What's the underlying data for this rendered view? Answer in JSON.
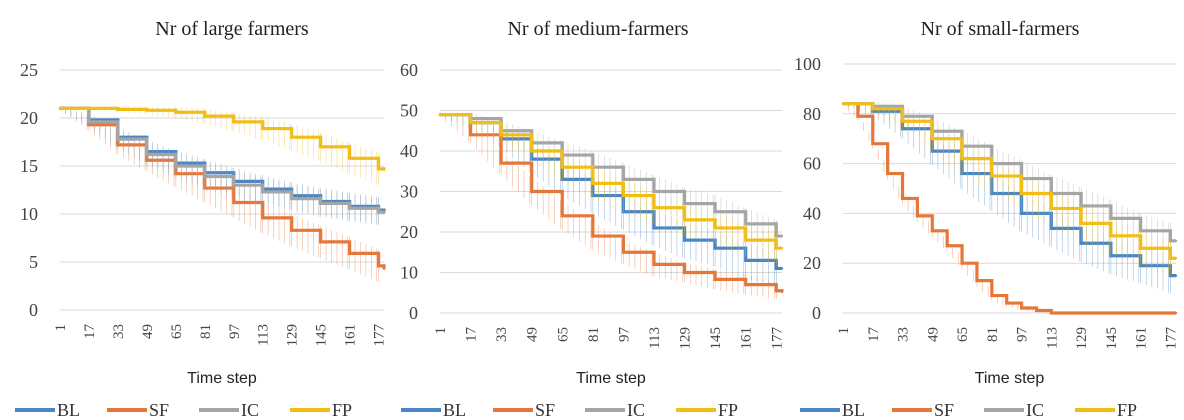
{
  "colors": {
    "BL": "#4a86c5",
    "SF": "#e5773a",
    "IC": "#a5a5a5",
    "FP": "#f2bd14"
  },
  "chart_data": [
    {
      "type": "line",
      "title": "Nr of large farmers",
      "xlabel": "Time step",
      "ylabel": "",
      "ylim": [
        0,
        25
      ],
      "yticks": [
        "0",
        "5",
        "10",
        "15",
        "20",
        "25"
      ],
      "xlim": [
        1,
        180
      ],
      "xticks": [
        "1",
        "17",
        "33",
        "49",
        "65",
        "81",
        "97",
        "113",
        "129",
        "145",
        "161",
        "177"
      ],
      "grid": true,
      "legend": "bottom",
      "series": [
        {
          "name": "BL",
          "x": [
            1,
            17,
            33,
            49,
            65,
            81,
            97,
            113,
            129,
            145,
            161,
            177,
            180
          ],
          "y": [
            21,
            19.8,
            18.0,
            16.5,
            15.3,
            14.3,
            13.4,
            12.6,
            11.9,
            11.3,
            10.8,
            10.4,
            10.3
          ],
          "error": [
            0.2,
            0.6,
            1.0,
            1.2,
            1.3,
            1.4,
            1.4,
            1.4,
            1.4,
            1.4,
            1.4,
            1.4,
            1.4
          ]
        },
        {
          "name": "SF",
          "x": [
            1,
            17,
            33,
            49,
            65,
            81,
            97,
            113,
            129,
            145,
            161,
            177,
            180
          ],
          "y": [
            21,
            19.3,
            17.2,
            15.6,
            14.2,
            12.7,
            11.2,
            9.6,
            8.3,
            7.1,
            5.9,
            4.6,
            4.3
          ],
          "error": [
            0.2,
            0.6,
            1.0,
            1.2,
            1.4,
            1.5,
            1.6,
            1.6,
            1.7,
            1.7,
            1.7,
            1.7,
            1.7
          ]
        },
        {
          "name": "IC",
          "x": [
            1,
            17,
            33,
            49,
            65,
            81,
            97,
            113,
            129,
            145,
            161,
            177,
            180
          ],
          "y": [
            21,
            19.6,
            17.8,
            16.2,
            15.0,
            13.9,
            13.0,
            12.3,
            11.6,
            11.1,
            10.6,
            10.2,
            10.1
          ],
          "error": [
            0.2,
            0.6,
            1.0,
            1.2,
            1.3,
            1.4,
            1.4,
            1.4,
            1.4,
            1.4,
            1.4,
            1.4,
            1.4
          ]
        },
        {
          "name": "FP",
          "x": [
            1,
            17,
            33,
            49,
            65,
            81,
            97,
            113,
            129,
            145,
            161,
            177,
            180
          ],
          "y": [
            21,
            21.0,
            20.9,
            20.8,
            20.6,
            20.2,
            19.6,
            18.9,
            18.0,
            17.0,
            15.8,
            14.7,
            14.6
          ],
          "error": [
            0.1,
            0.2,
            0.3,
            0.4,
            0.6,
            0.8,
            1.0,
            1.2,
            1.4,
            1.5,
            1.6,
            1.7,
            1.7
          ]
        }
      ]
    },
    {
      "type": "line",
      "title": "Nr of medium-farmers",
      "xlabel": "Time step",
      "ylabel": "",
      "ylim": [
        0,
        60
      ],
      "yticks": [
        "0",
        "10",
        "20",
        "30",
        "40",
        "50",
        "60"
      ],
      "xlim": [
        1,
        180
      ],
      "xticks": [
        "1",
        "17",
        "33",
        "49",
        "65",
        "81",
        "97",
        "113",
        "129",
        "145",
        "161",
        "177"
      ],
      "grid": true,
      "legend": "bottom",
      "series": [
        {
          "name": "BL",
          "x": [
            1,
            17,
            33,
            49,
            65,
            81,
            97,
            113,
            129,
            145,
            161,
            177,
            180
          ],
          "y": [
            49,
            47,
            43,
            38,
            33,
            29,
            25,
            21,
            18,
            16,
            13,
            11,
            11
          ],
          "error": [
            0.5,
            1.5,
            2.5,
            3.5,
            4.0,
            4.5,
            4.5,
            4.5,
            4.5,
            4.5,
            4.5,
            4.0,
            4.0
          ]
        },
        {
          "name": "SF",
          "x": [
            1,
            17,
            33,
            49,
            65,
            81,
            97,
            113,
            129,
            145,
            161,
            177,
            180
          ],
          "y": [
            49,
            44,
            37,
            30,
            24,
            19,
            15,
            12,
            10,
            8.3,
            7,
            5.5,
            5.2
          ],
          "error": [
            0.5,
            2.0,
            3.0,
            3.5,
            3.5,
            3.5,
            3.0,
            3.0,
            2.5,
            2.5,
            2.5,
            2.0,
            2.0
          ]
        },
        {
          "name": "IC",
          "x": [
            1,
            17,
            33,
            49,
            65,
            81,
            97,
            113,
            129,
            145,
            161,
            177,
            180
          ],
          "y": [
            49,
            48,
            45,
            42,
            39,
            36,
            33,
            30,
            27,
            25,
            22,
            19,
            19
          ],
          "error": [
            0.5,
            1.5,
            2.5,
            3.0,
            3.5,
            4.0,
            4.0,
            4.0,
            4.0,
            4.0,
            4.0,
            4.0,
            4.0
          ]
        },
        {
          "name": "FP",
          "x": [
            1,
            17,
            33,
            49,
            65,
            81,
            97,
            113,
            129,
            145,
            161,
            177,
            180
          ],
          "y": [
            49,
            47,
            44,
            40,
            36,
            32,
            29,
            26,
            23,
            21,
            18,
            16,
            16
          ],
          "error": [
            0.5,
            1.5,
            2.5,
            3.0,
            3.5,
            4.0,
            4.0,
            4.0,
            4.0,
            4.0,
            4.0,
            4.0,
            4.0
          ]
        }
      ]
    },
    {
      "type": "line",
      "title": "Nr of small-farmers",
      "xlabel": "Time step",
      "ylabel": "",
      "ylim": [
        0,
        100
      ],
      "yticks": [
        "0",
        "20",
        "40",
        "60",
        "80",
        "100"
      ],
      "xlim": [
        1,
        180
      ],
      "xticks": [
        "1",
        "17",
        "33",
        "49",
        "65",
        "81",
        "97",
        "113",
        "129",
        "145",
        "161",
        "177"
      ],
      "grid": true,
      "legend": "bottom",
      "series": [
        {
          "name": "BL",
          "x": [
            1,
            17,
            33,
            49,
            65,
            81,
            97,
            113,
            129,
            145,
            161,
            177,
            180
          ],
          "y": [
            84,
            81,
            74,
            65,
            56,
            48,
            40,
            34,
            28,
            23,
            19,
            15,
            15
          ],
          "error": [
            0.5,
            2.0,
            4.0,
            5.5,
            6.5,
            7.0,
            7.5,
            7.5,
            7.5,
            7.5,
            7.0,
            7.0,
            7.0
          ]
        },
        {
          "name": "SF",
          "x": [
            1,
            9,
            17,
            25,
            33,
            41,
            49,
            57,
            65,
            73,
            81,
            89,
            97,
            105,
            113,
            129,
            145,
            161,
            177,
            180
          ],
          "y": [
            84,
            79,
            68,
            56,
            46,
            39,
            33,
            27,
            20,
            13,
            7,
            4,
            2,
            1,
            0,
            0,
            0,
            0,
            0,
            0
          ],
          "error": [
            0.5,
            1.5,
            2.0,
            2.5,
            2.5,
            2.5,
            2.5,
            2.5,
            2.5,
            2.5,
            2.0,
            1.5,
            1.0,
            0.5,
            0,
            0,
            0,
            0,
            0,
            0
          ]
        },
        {
          "name": "IC",
          "x": [
            1,
            17,
            33,
            49,
            65,
            81,
            97,
            113,
            129,
            145,
            161,
            177,
            180
          ],
          "y": [
            84,
            83,
            79,
            73,
            67,
            60,
            54,
            48,
            43,
            38,
            33,
            29,
            29
          ],
          "error": [
            0.5,
            2.0,
            4.0,
            5.5,
            6.5,
            7.0,
            7.5,
            7.5,
            7.5,
            7.5,
            7.0,
            7.0,
            7.0
          ]
        },
        {
          "name": "FP",
          "x": [
            1,
            17,
            33,
            49,
            65,
            81,
            97,
            113,
            129,
            145,
            161,
            177,
            180
          ],
          "y": [
            84,
            82,
            77,
            70,
            62,
            55,
            48,
            42,
            36,
            31,
            26,
            22,
            22
          ],
          "error": [
            0.5,
            2.0,
            4.0,
            5.5,
            6.5,
            7.0,
            7.5,
            7.5,
            7.5,
            7.5,
            7.0,
            7.0,
            7.0
          ]
        }
      ]
    }
  ]
}
